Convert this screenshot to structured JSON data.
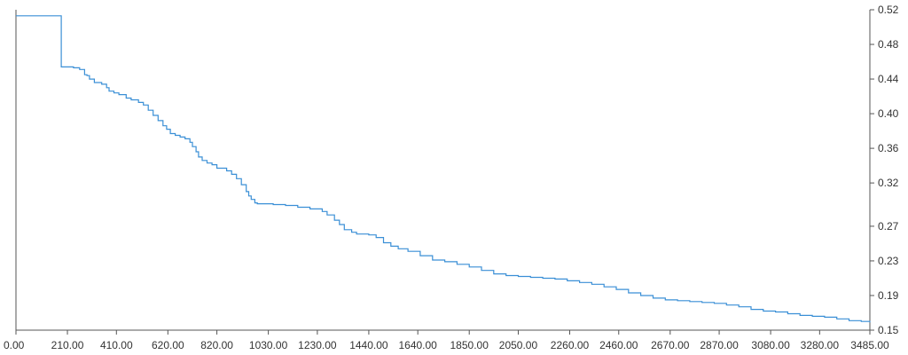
{
  "chart_data": {
    "type": "line",
    "title": "",
    "xlabel": "",
    "ylabel": "",
    "grid": false,
    "xlim": [
      0,
      3485
    ],
    "ylim": [
      0.15,
      0.52
    ],
    "x_tick_labels": [
      "0.00",
      "210.00",
      "410.00",
      "620.00",
      "820.00",
      "1030.00",
      "1230.00",
      "1440.00",
      "1640.00",
      "1850.00",
      "2050.00",
      "2260.00",
      "2460.00",
      "2670.00",
      "2870.00",
      "3080.00",
      "3280.00",
      "3485.00"
    ],
    "x_tick_values": [
      0,
      210,
      410,
      620,
      820,
      1030,
      1230,
      1440,
      1640,
      1850,
      2050,
      2260,
      2460,
      2670,
      2870,
      3080,
      3280,
      3485
    ],
    "y_tick_labels": [
      "0.52",
      "0.48",
      "0.44",
      "0.40",
      "0.36",
      "0.32",
      "0.27",
      "0.23",
      "0.19",
      "0.15"
    ],
    "y_tick_values": [
      0.52,
      0.48,
      0.44,
      0.4,
      0.36,
      0.32,
      0.27,
      0.23,
      0.19,
      0.15
    ],
    "y_axis_side": "right",
    "colors": {
      "line": "#3a8fd6",
      "axis": "#555555",
      "text": "#333333"
    },
    "series": [
      {
        "step": true,
        "x": [
          0,
          185,
          235,
          260,
          280,
          290,
          300,
          320,
          350,
          370,
          380,
          400,
          420,
          450,
          470,
          500,
          520,
          540,
          560,
          580,
          600,
          615,
          630,
          650,
          670,
          690,
          710,
          720,
          735,
          745,
          760,
          780,
          800,
          820,
          860,
          880,
          900,
          920,
          940,
          950,
          960,
          975,
          985,
          1000,
          1050,
          1100,
          1150,
          1200,
          1250,
          1270,
          1300,
          1320,
          1340,
          1370,
          1390,
          1440,
          1470,
          1500,
          1530,
          1560,
          1600,
          1650,
          1700,
          1750,
          1800,
          1850,
          1900,
          1950,
          2000,
          2050,
          2100,
          2150,
          2200,
          2250,
          2300,
          2350,
          2400,
          2450,
          2500,
          2550,
          2600,
          2650,
          2700,
          2750,
          2800,
          2850,
          2900,
          2950,
          3000,
          3050,
          3100,
          3150,
          3200,
          3250,
          3300,
          3350,
          3400,
          3450,
          3485
        ],
        "y": [
          0.513,
          0.454,
          0.453,
          0.451,
          0.445,
          0.444,
          0.44,
          0.436,
          0.434,
          0.43,
          0.426,
          0.424,
          0.422,
          0.418,
          0.416,
          0.413,
          0.41,
          0.404,
          0.398,
          0.392,
          0.386,
          0.382,
          0.377,
          0.375,
          0.373,
          0.371,
          0.367,
          0.362,
          0.356,
          0.35,
          0.346,
          0.343,
          0.341,
          0.337,
          0.334,
          0.33,
          0.325,
          0.318,
          0.31,
          0.305,
          0.301,
          0.297,
          0.296,
          0.296,
          0.295,
          0.294,
          0.292,
          0.29,
          0.287,
          0.283,
          0.277,
          0.272,
          0.266,
          0.263,
          0.261,
          0.26,
          0.257,
          0.251,
          0.247,
          0.244,
          0.241,
          0.236,
          0.231,
          0.229,
          0.226,
          0.223,
          0.219,
          0.215,
          0.213,
          0.212,
          0.211,
          0.21,
          0.209,
          0.207,
          0.205,
          0.203,
          0.2,
          0.197,
          0.193,
          0.19,
          0.187,
          0.185,
          0.184,
          0.183,
          0.182,
          0.181,
          0.179,
          0.177,
          0.174,
          0.172,
          0.171,
          0.169,
          0.167,
          0.166,
          0.165,
          0.163,
          0.161,
          0.16,
          0.159
        ]
      }
    ]
  }
}
